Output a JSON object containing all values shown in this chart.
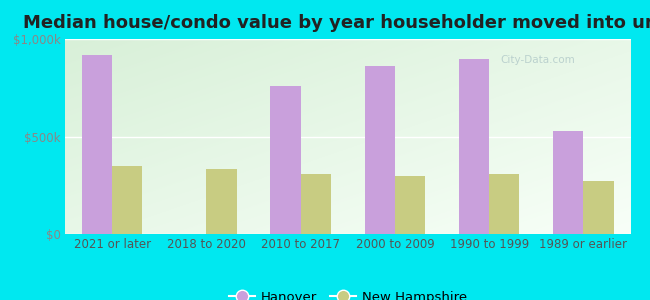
{
  "title": "Median house/condo value by year householder moved into unit",
  "categories": [
    "2021 or later",
    "2018 to 2020",
    "2010 to 2017",
    "2000 to 2009",
    "1990 to 1999",
    "1989 or earlier"
  ],
  "hanover_values": [
    920000,
    0,
    760000,
    860000,
    900000,
    530000
  ],
  "nh_values": [
    350000,
    335000,
    310000,
    295000,
    310000,
    270000
  ],
  "hanover_color": "#c9a0dc",
  "nh_color": "#c8cc82",
  "background_color": "#00e8f0",
  "plot_bg_top_left": "#dff5dc",
  "plot_bg_top_right": "#eaf8f2",
  "plot_bg_bottom": "#f5fff5",
  "ylim": [
    0,
    1000000
  ],
  "yticks": [
    0,
    500000,
    1000000
  ],
  "ytick_labels": [
    "$0",
    "$500k",
    "$1,000k"
  ],
  "legend_labels": [
    "Hanover",
    "New Hampshire"
  ],
  "bar_width": 0.32,
  "title_fontsize": 13,
  "tick_fontsize": 8.5,
  "legend_fontsize": 9.5,
  "watermark_text": "City-Data.com",
  "watermark_color": "#b0c8c8",
  "watermark_alpha": 0.8
}
